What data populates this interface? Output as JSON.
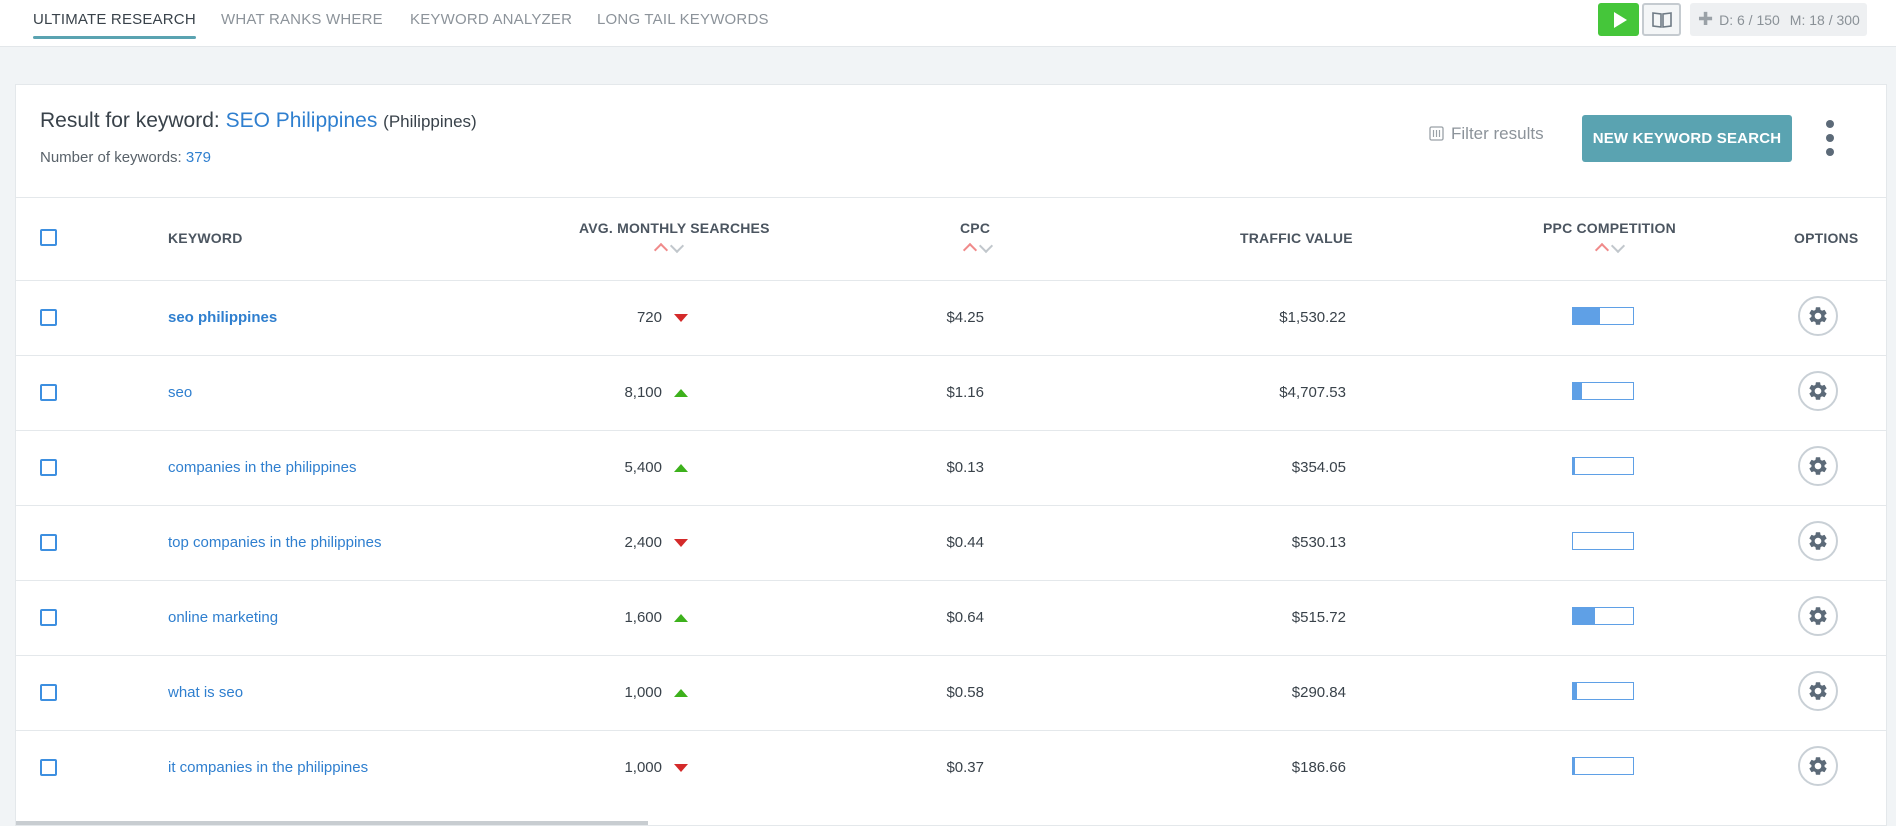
{
  "tabs": [
    {
      "label": "ULTIMATE RESEARCH",
      "active": true
    },
    {
      "label": "WHAT RANKS WHERE",
      "active": false
    },
    {
      "label": "KEYWORD ANALYZER",
      "active": false
    },
    {
      "label": "LONG TAIL KEYWORDS",
      "active": false
    }
  ],
  "limits": {
    "d": "D: 6 / 150",
    "m": "M: 18 / 300"
  },
  "result": {
    "prefix": "Result for keyword:",
    "keyword": "SEO Philippines",
    "country": "(Philippines)",
    "count_label": "Number of keywords:",
    "count": "379"
  },
  "actions": {
    "filter_label": "Filter results",
    "new_search_label": "NEW KEYWORD SEARCH"
  },
  "columns": {
    "keyword": "KEYWORD",
    "searches": "AVG. MONTHLY SEARCHES",
    "cpc": "CPC",
    "traffic": "TRAFFIC VALUE",
    "competition": "PPC COMPETITION",
    "options": "OPTIONS"
  },
  "rows": [
    {
      "keyword": "seo philippines",
      "searches": "720",
      "trend": "down",
      "cpc": "$4.25",
      "traffic": "$1,530.22",
      "competition": 0.45
    },
    {
      "keyword": "seo",
      "searches": "8,100",
      "trend": "up",
      "cpc": "$1.16",
      "traffic": "$4,707.53",
      "competition": 0.15
    },
    {
      "keyword": "companies in the philippines",
      "searches": "5,400",
      "trend": "up",
      "cpc": "$0.13",
      "traffic": "$354.05",
      "competition": 0.03
    },
    {
      "keyword": "top companies in the philippines",
      "searches": "2,400",
      "trend": "down",
      "cpc": "$0.44",
      "traffic": "$530.13",
      "competition": 0.0
    },
    {
      "keyword": "online marketing",
      "searches": "1,600",
      "trend": "up",
      "cpc": "$0.64",
      "traffic": "$515.72",
      "competition": 0.36
    },
    {
      "keyword": "what is seo",
      "searches": "1,000",
      "trend": "up",
      "cpc": "$0.58",
      "traffic": "$290.84",
      "competition": 0.07
    },
    {
      "keyword": "it companies in the philippines",
      "searches": "1,000",
      "trend": "down",
      "cpc": "$0.37",
      "traffic": "$186.66",
      "competition": 0.04
    }
  ],
  "colors": {
    "accent": "#5aa3b1",
    "link": "#2f7fcf",
    "play": "#45c63a",
    "up": "#3db11c",
    "down": "#d42a2a",
    "bar": "#5fa0e6"
  }
}
